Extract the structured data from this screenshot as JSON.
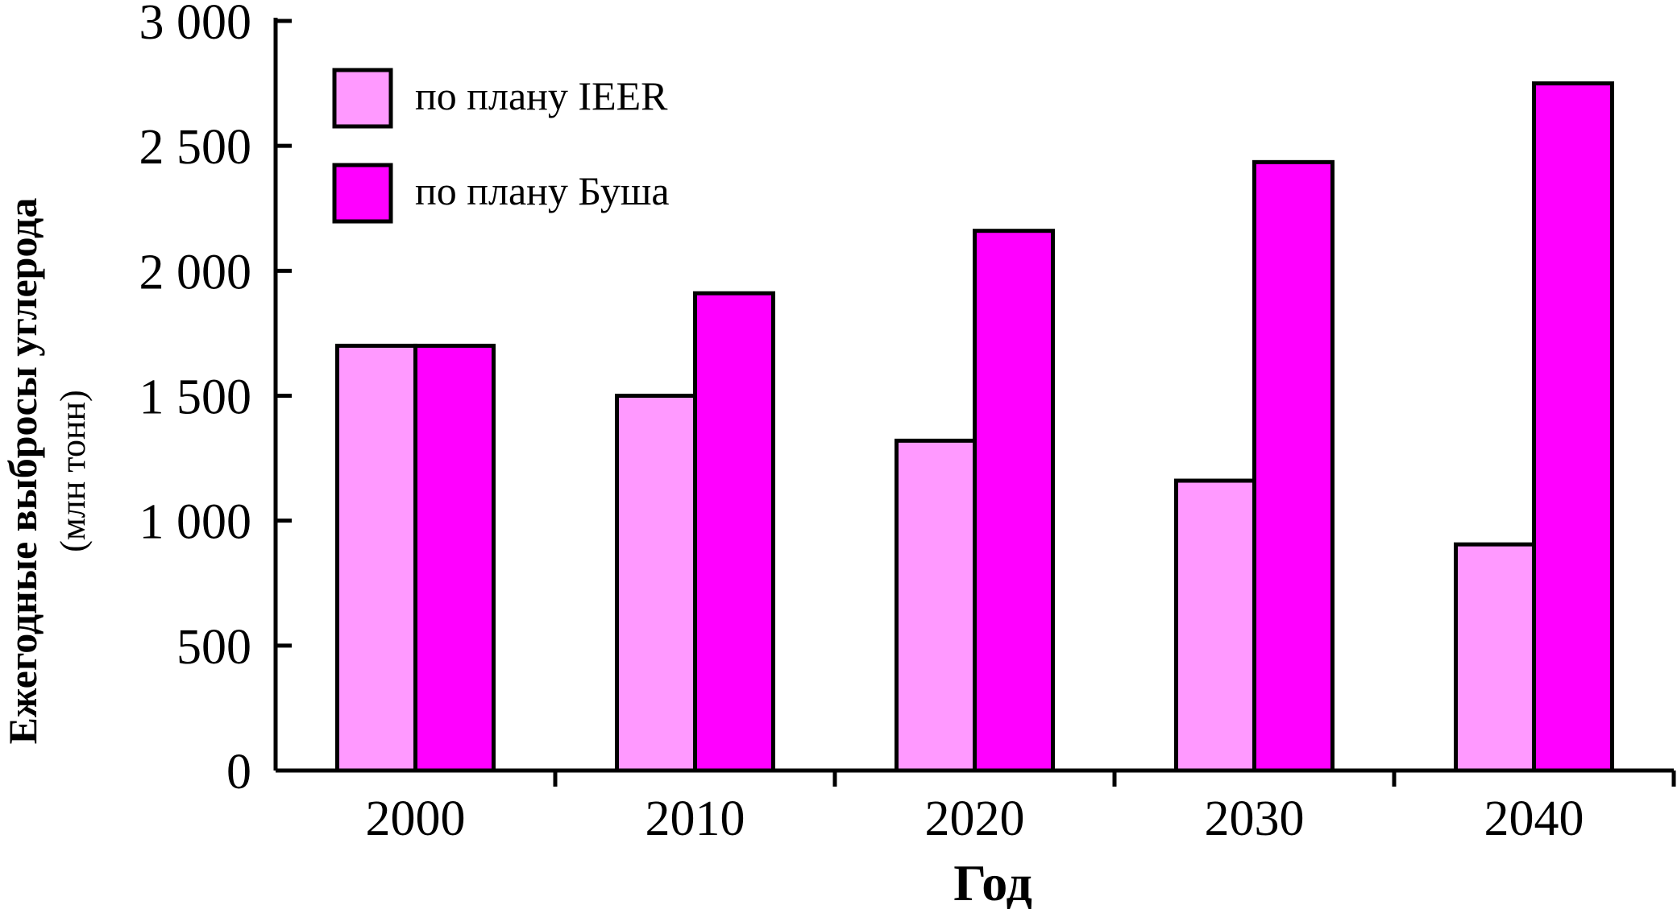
{
  "colors": {
    "ieer": "#ff99ff",
    "bush": "#ff00ff",
    "axis": "#000000"
  },
  "chart_data": {
    "type": "bar",
    "categories": [
      "2000",
      "2010",
      "2020",
      "2030",
      "2040"
    ],
    "series": [
      {
        "name": "по плану IEER",
        "values": [
          1700,
          1500,
          1320,
          1160,
          905
        ]
      },
      {
        "name": "по плану Буша",
        "values": [
          1700,
          1910,
          2160,
          2435,
          2750
        ]
      }
    ],
    "title": "",
    "xlabel": "Год",
    "ylabel": "Ежегодные выбросы углерода",
    "ylabel_sub": "(млн тонн)",
    "ylim": [
      0,
      3000
    ],
    "yticks": [
      0,
      500,
      1000,
      1500,
      2000,
      2500,
      3000
    ],
    "ytick_labels": [
      "0",
      "500",
      "1 000",
      "1 500",
      "2 000",
      "2 500",
      "3 000"
    ],
    "grid": false,
    "legend_position": "top-left"
  }
}
